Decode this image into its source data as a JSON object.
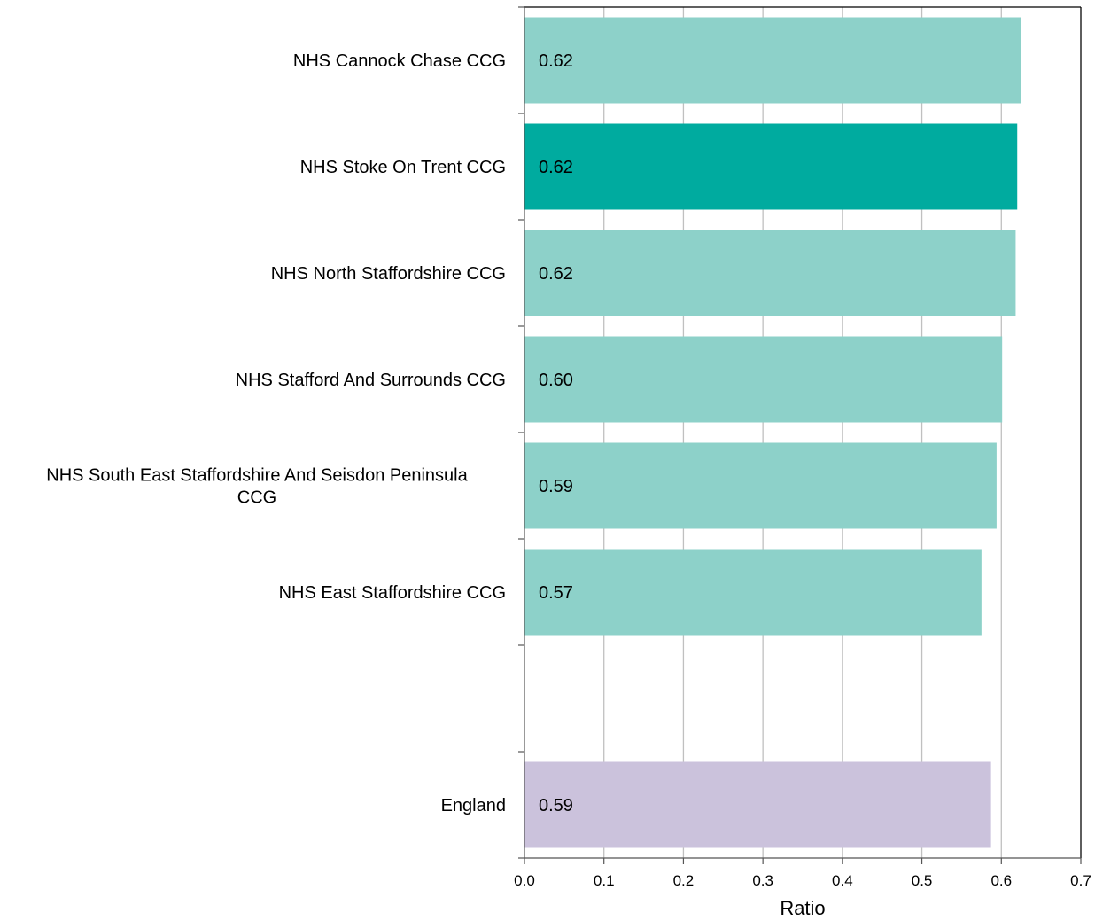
{
  "chart_data": {
    "type": "bar",
    "orientation": "horizontal",
    "title": "",
    "xlabel": "Ratio",
    "ylabel": "",
    "xlim": [
      0,
      0.7
    ],
    "xticks": [
      0,
      0.1,
      0.2,
      0.3,
      0.4,
      0.5,
      0.6,
      0.7
    ],
    "xtick_labels": [
      "0.0",
      "0.1",
      "0.2",
      "0.3",
      "0.4",
      "0.5",
      "0.6",
      "0.7"
    ],
    "grid": "vertical",
    "bars": [
      {
        "category": [
          "NHS Cannock Chase CCG"
        ],
        "value": 0.625,
        "label": "0.62",
        "color": "#8dd1c9"
      },
      {
        "category": [
          "NHS Stoke On Trent CCG"
        ],
        "value": 0.62,
        "label": "0.62",
        "color": "#00ab9f"
      },
      {
        "category": [
          "NHS North Staffordshire CCG"
        ],
        "value": 0.618,
        "label": "0.62",
        "color": "#8dd1c9"
      },
      {
        "category": [
          "NHS Stafford And Surrounds CCG"
        ],
        "value": 0.601,
        "label": "0.60",
        "color": "#8dd1c9"
      },
      {
        "category": [
          "NHS South East Staffordshire And Seisdon Peninsula",
          "CCG"
        ],
        "value": 0.594,
        "label": "0.59",
        "color": "#8dd1c9"
      },
      {
        "category": [
          "NHS East Staffordshire CCG"
        ],
        "value": 0.575,
        "label": "0.57",
        "color": "#8dd1c9"
      },
      {
        "category": [
          ""
        ],
        "value": null,
        "label": "",
        "color": ""
      },
      {
        "category": [
          "England"
        ],
        "value": 0.587,
        "label": "0.59",
        "color": "#cbc2dc"
      }
    ]
  }
}
